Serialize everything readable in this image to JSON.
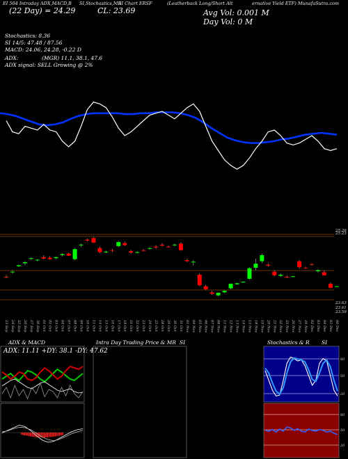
{
  "header": {
    "text1": "EI 504 Intraday ADX,MACD,B",
    "text2": "SI,Stochastics,MR",
    "text3": "SI Chart ERSF",
    "text4": "(Leatherback Long/Short Alt",
    "text5": "ernative Yield ETF) MunafaSutra.com"
  },
  "overlay": {
    "price_line": "(22 Day) = 24.29",
    "close_line": "CL: 23.69",
    "avg_vol": "Avg Vol: 0.001 M",
    "day_vol": "Day Vol: 0   M"
  },
  "indicators": {
    "stoch": "Stochastics: 8.36",
    "si": "SI 14/5: 47.48   / 87.56",
    "macd": "MACD: 24.06, 24.28, -0.22  D",
    "adx": "ADX:",
    "mgr": "(MGR) 11.1, 38.1, 47.6",
    "signal": "ADX  signal: SELL Growing @ 2%"
  },
  "panels": {
    "adx_title": "ADX  & MACD",
    "adx_readout": "ADX: 11.11  +DY: 38.1  -DY: 47.62",
    "intraday_title": "Intra  Day Trading Price  & MR",
    "intraday_si": "SI",
    "stoch_title": "Stochastics & R",
    "stoch_si": "SI",
    "stoch_levels": [
      "80",
      "50",
      "20"
    ],
    "rsi_levels": [
      "80",
      "50",
      "20"
    ]
  },
  "colors": {
    "up": "#00ff00",
    "down": "#ff0000",
    "ma": "#0033ff",
    "price_line": "#ffffff"
  },
  "chart_data": {
    "type": "candlestick",
    "title": "Leatherback Long/Short Alternative Yield ETF",
    "ylim": [
      23.6,
      25.4
    ],
    "price_labels": [
      "25.26",
      "25.23",
      "23.63",
      "23.61",
      "23.59"
    ],
    "dates": [
      "23 Sep",
      "24 Sep",
      "25 Sep",
      "26 Sep",
      "27 Sep",
      "30 Sep",
      "01 Oct",
      "02 Oct",
      "03 Oct",
      "04 Oct",
      "07 Oct",
      "08 Oct",
      "09 Oct",
      "10 Oct",
      "11 Oct",
      "14 Oct",
      "15 Oct",
      "16 Oct",
      "17 Oct",
      "18 Oct",
      "21 Oct",
      "22 Oct",
      "23 Oct",
      "24 Oct",
      "25 Oct",
      "28 Oct",
      "29 Oct",
      "30 Oct",
      "31 Oct",
      "01 Nov",
      "04 Nov",
      "05 Nov",
      "06 Nov",
      "07 Nov",
      "08 Nov",
      "11 Nov",
      "12 Nov",
      "13 Nov",
      "14 Nov",
      "15 Nov",
      "18 Nov",
      "19 Nov",
      "20 Nov",
      "21 Nov",
      "22 Nov",
      "25 Nov",
      "26 Nov",
      "27 Nov",
      "29 Nov",
      "02 Dec",
      "03 Dec",
      "04 Dec",
      "05 Dec",
      "06 Dec"
    ],
    "candles": [
      {
        "o": 24.39,
        "h": 24.42,
        "l": 24.36,
        "c": 24.38
      },
      {
        "o": 24.48,
        "h": 24.52,
        "l": 24.45,
        "c": 24.49
      },
      {
        "o": 24.6,
        "h": 24.63,
        "l": 24.58,
        "c": 24.62
      },
      {
        "o": 24.66,
        "h": 24.7,
        "l": 24.62,
        "c": 24.68
      },
      {
        "o": 24.75,
        "h": 24.78,
        "l": 24.72,
        "c": 24.76
      },
      {
        "o": 24.72,
        "h": 24.74,
        "l": 24.69,
        "c": 24.73
      },
      {
        "o": 24.78,
        "h": 24.82,
        "l": 24.74,
        "c": 24.75
      },
      {
        "o": 24.77,
        "h": 24.8,
        "l": 24.73,
        "c": 24.74
      },
      {
        "o": 24.76,
        "h": 24.79,
        "l": 24.74,
        "c": 24.78
      },
      {
        "o": 24.82,
        "h": 24.86,
        "l": 24.79,
        "c": 24.84
      },
      {
        "o": 24.85,
        "h": 24.87,
        "l": 24.8,
        "c": 24.81
      },
      {
        "o": 24.74,
        "h": 24.96,
        "l": 24.72,
        "c": 24.94
      },
      {
        "o": 25.02,
        "h": 25.05,
        "l": 24.98,
        "c": 25.03
      },
      {
        "o": 25.13,
        "h": 25.15,
        "l": 25.09,
        "c": 25.11
      },
      {
        "o": 25.16,
        "h": 25.18,
        "l": 25.06,
        "c": 25.07
      },
      {
        "o": 24.96,
        "h": 24.99,
        "l": 24.86,
        "c": 24.88
      },
      {
        "o": 24.88,
        "h": 24.91,
        "l": 24.86,
        "c": 24.89
      },
      {
        "o": 24.92,
        "h": 24.95,
        "l": 24.88,
        "c": 24.91
      },
      {
        "o": 25.0,
        "h": 25.1,
        "l": 24.98,
        "c": 25.08
      },
      {
        "o": 25.06,
        "h": 25.09,
        "l": 25.0,
        "c": 25.02
      },
      {
        "o": 24.9,
        "h": 24.93,
        "l": 24.85,
        "c": 24.87
      },
      {
        "o": 24.87,
        "h": 24.9,
        "l": 24.86,
        "c": 24.88
      },
      {
        "o": 24.92,
        "h": 24.94,
        "l": 24.89,
        "c": 24.91
      },
      {
        "o": 24.95,
        "h": 24.98,
        "l": 24.93,
        "c": 24.96
      },
      {
        "o": 24.99,
        "h": 25.02,
        "l": 24.94,
        "c": 24.97
      },
      {
        "o": 25.03,
        "h": 25.06,
        "l": 24.99,
        "c": 25.01
      },
      {
        "o": 24.99,
        "h": 25.01,
        "l": 24.97,
        "c": 24.98
      },
      {
        "o": 25.02,
        "h": 25.05,
        "l": 24.99,
        "c": 25.03
      },
      {
        "o": 25.05,
        "h": 25.08,
        "l": 24.91,
        "c": 24.92
      },
      {
        "o": 24.72,
        "h": 24.75,
        "l": 24.68,
        "c": 24.7
      },
      {
        "o": 24.68,
        "h": 24.72,
        "l": 24.61,
        "c": 24.69
      },
      {
        "o": 24.43,
        "h": 24.46,
        "l": 24.2,
        "c": 24.22
      },
      {
        "o": 24.2,
        "h": 24.23,
        "l": 24.13,
        "c": 24.14
      },
      {
        "o": 24.08,
        "h": 24.11,
        "l": 24.03,
        "c": 24.05
      },
      {
        "o": 24.02,
        "h": 24.08,
        "l": 24.0,
        "c": 24.07
      },
      {
        "o": 24.08,
        "h": 24.12,
        "l": 24.06,
        "c": 24.11
      },
      {
        "o": 24.16,
        "h": 24.26,
        "l": 24.14,
        "c": 24.25
      },
      {
        "o": 24.24,
        "h": 24.27,
        "l": 24.23,
        "c": 24.26
      },
      {
        "o": 24.28,
        "h": 24.3,
        "l": 24.27,
        "c": 24.29
      },
      {
        "o": 24.35,
        "h": 24.58,
        "l": 24.33,
        "c": 24.56
      },
      {
        "o": 24.57,
        "h": 24.75,
        "l": 24.52,
        "c": 24.65
      },
      {
        "o": 24.7,
        "h": 24.85,
        "l": 24.66,
        "c": 24.82
      },
      {
        "o": 24.63,
        "h": 24.66,
        "l": 24.59,
        "c": 24.61
      },
      {
        "o": 24.49,
        "h": 24.52,
        "l": 24.4,
        "c": 24.42
      },
      {
        "o": 24.41,
        "h": 24.46,
        "l": 24.39,
        "c": 24.43
      },
      {
        "o": 24.39,
        "h": 24.42,
        "l": 24.36,
        "c": 24.38
      },
      {
        "o": 24.4,
        "h": 24.41,
        "l": 24.39,
        "c": 24.4
      },
      {
        "o": 24.7,
        "h": 24.72,
        "l": 24.55,
        "c": 24.58
      },
      {
        "o": 24.57,
        "h": 24.59,
        "l": 24.55,
        "c": 24.56
      },
      {
        "o": 24.64,
        "h": 24.66,
        "l": 24.61,
        "c": 24.63
      },
      {
        "o": 24.5,
        "h": 24.54,
        "l": 24.47,
        "c": 24.52
      },
      {
        "o": 24.48,
        "h": 24.52,
        "l": 24.41,
        "c": 24.42
      },
      {
        "o": 24.25,
        "h": 24.28,
        "l": 24.16,
        "c": 24.17
      },
      {
        "o": 24.2,
        "h": 24.21,
        "l": 24.19,
        "c": 24.2
      }
    ],
    "close_line": [
      24.92,
      24.8,
      24.78,
      24.86,
      24.84,
      24.82,
      24.88,
      24.82,
      24.8,
      24.7,
      24.64,
      24.7,
      24.86,
      25.04,
      25.12,
      25.1,
      25.06,
      24.96,
      24.84,
      24.76,
      24.8,
      24.86,
      24.92,
      24.98,
      25.0,
      25.02,
      24.98,
      24.94,
      25.0,
      25.06,
      25.1,
      25.02,
      24.86,
      24.7,
      24.6,
      24.5,
      24.44,
      24.4,
      24.44,
      24.52,
      24.62,
      24.7,
      24.8,
      24.82,
      24.76,
      24.68,
      24.66,
      24.68,
      24.72,
      24.76,
      24.7,
      24.62,
      24.6,
      24.62
    ],
    "ma_line": [
      25.0,
      24.99,
      24.97,
      24.94,
      24.91,
      24.88,
      24.87,
      24.88,
      24.9,
      24.94,
      24.97,
      24.99,
      25.0,
      25.0,
      25.0,
      25.0,
      24.99,
      24.99,
      25.0,
      25.0,
      25.01,
      25.01,
      25.01,
      25.0,
      24.98,
      24.95,
      24.9,
      24.84,
      24.79,
      24.74,
      24.71,
      24.69,
      24.68,
      24.68,
      24.69,
      24.7,
      24.72,
      24.73,
      24.75,
      24.77,
      24.78,
      24.79,
      24.78,
      24.77
    ]
  }
}
